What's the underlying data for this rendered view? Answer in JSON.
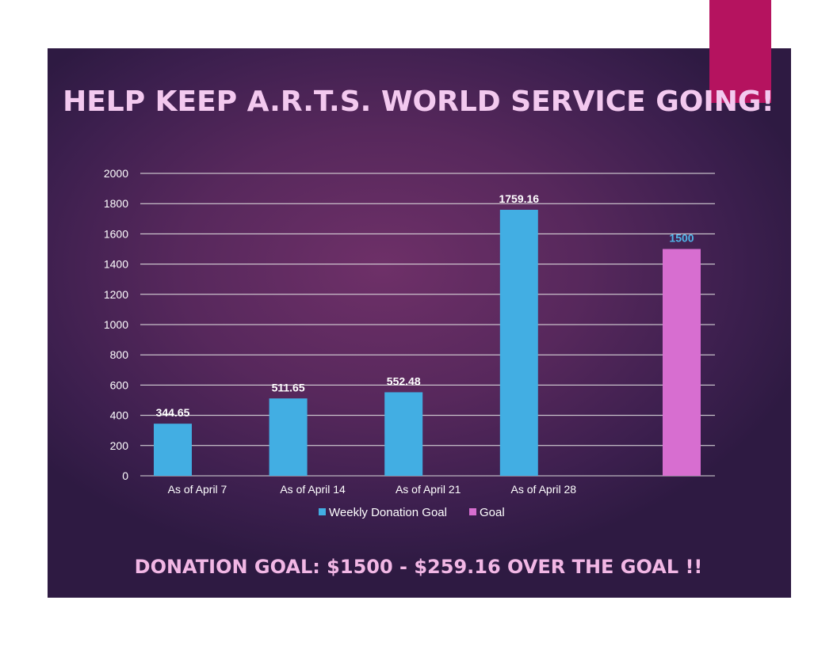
{
  "slide": {
    "title": "HELP KEEP A.R.T.S. WORLD SERVICE GOING!",
    "subtitle": "DONATION GOAL: $1500 - $259.16 OVER THE GOAL !!"
  },
  "chart_data": {
    "type": "bar",
    "categories": [
      "As of April 7",
      "As of April 14",
      "As of April 21",
      "As of April 28",
      ""
    ],
    "series": [
      {
        "name": "Weekly Donation Goal",
        "color": "#42aee3",
        "values": [
          344.65,
          511.65,
          552.48,
          1759.16,
          null
        ],
        "labels": [
          "344.65",
          "511.65",
          "552.48",
          "1759.16",
          ""
        ]
      },
      {
        "name": "Goal",
        "color": "#d76ed0",
        "values": [
          null,
          null,
          null,
          null,
          1500
        ],
        "labels": [
          "",
          "",
          "",
          "",
          "1500"
        ]
      }
    ],
    "ylim": [
      0,
      2000
    ],
    "yticks": [
      "0",
      "200",
      "400",
      "600",
      "800",
      "1000",
      "1200",
      "1400",
      "1600",
      "1800",
      "2000"
    ],
    "grid": true,
    "legend": "bottom",
    "xlabel": "",
    "ylabel": ""
  }
}
